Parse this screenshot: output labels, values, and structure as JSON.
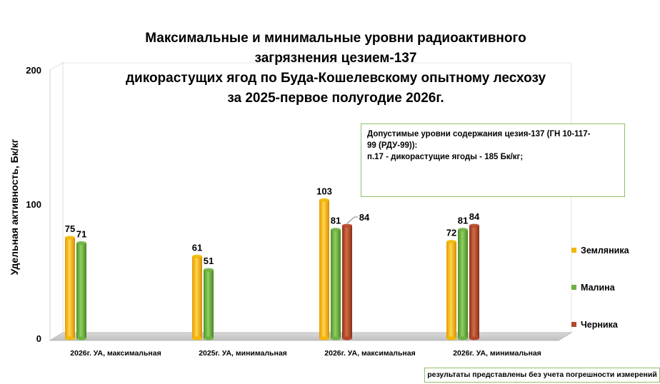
{
  "chart_data": {
    "type": "bar",
    "title_lines": [
      "Максимальные и минимальные уровни радиоактивного",
      "загрязнения цезием-137",
      "дикорастущих ягод по Буда-Кошелевскому опытному лесхозу",
      "за 2025-первое полугодие 2026г."
    ],
    "ylabel": "Удельная активность, Бк/кг",
    "ylim": [
      0,
      200
    ],
    "yticks": [
      0,
      100,
      200
    ],
    "categories": [
      "2026г. УА, максимальная",
      "2025г. УА, минимальная",
      "2026г. УА, максимальная",
      "2026г. УА, минимальная"
    ],
    "series": [
      {
        "name": "Земляника",
        "color": "#f2b705",
        "values": [
          75,
          61,
          103,
          72
        ]
      },
      {
        "name": "Малина",
        "color": "#6fb143",
        "values": [
          71,
          51,
          81,
          81
        ]
      },
      {
        "name": "Черника",
        "color": "#b5472a",
        "values": [
          null,
          null,
          84,
          84
        ]
      }
    ],
    "legend_position": "right",
    "grid": false
  },
  "note": {
    "lines": [
      "Допустимые уровни содержания цезия-137 (ГН 10-117-",
      "99 (РДУ-99)):",
      "п.17 - дикорастущие ягоды - 185 Бк/кг;"
    ]
  },
  "footer_note": "результаты представлены без учета погрешности измерений"
}
